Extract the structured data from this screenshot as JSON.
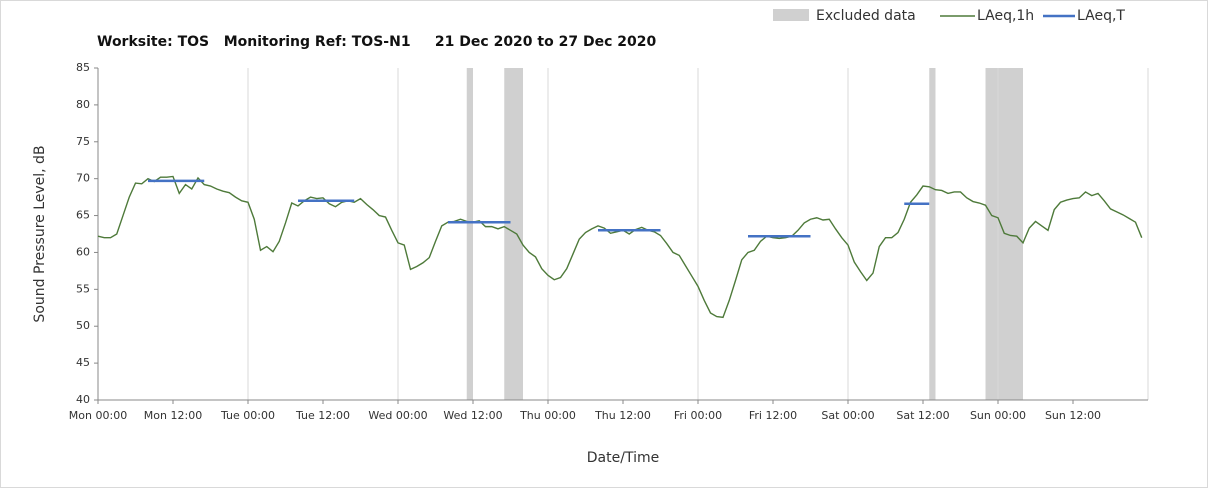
{
  "chart_data": {
    "type": "line",
    "title": "Worksite: TOS   Monitoring Ref: TOS-N1     21 Dec 2020 to 27 Dec 2020",
    "x_label": "Date/Time",
    "y_label": "Sound Pressure Level, dB",
    "xlim": [
      0,
      168
    ],
    "ylim": [
      40,
      85
    ],
    "xticks": [
      {
        "value": 0,
        "label": "Mon 00:00"
      },
      {
        "value": 12,
        "label": "Mon 12:00"
      },
      {
        "value": 24,
        "label": "Tue 00:00"
      },
      {
        "value": 36,
        "label": "Tue 12:00"
      },
      {
        "value": 48,
        "label": "Wed 00:00"
      },
      {
        "value": 60,
        "label": "Wed 12:00"
      },
      {
        "value": 72,
        "label": "Thu 00:00"
      },
      {
        "value": 84,
        "label": "Thu 12:00"
      },
      {
        "value": 96,
        "label": "Fri 00:00"
      },
      {
        "value": 108,
        "label": "Fri 12:00"
      },
      {
        "value": 120,
        "label": "Sat 00:00"
      },
      {
        "value": 132,
        "label": "Sat 12:00"
      },
      {
        "value": 144,
        "label": "Sun 00:00"
      },
      {
        "value": 156,
        "label": "Sun 12:00"
      }
    ],
    "yticks": [
      40,
      45,
      50,
      55,
      60,
      65,
      70,
      75,
      80,
      85
    ],
    "excluded": {
      "name": "Excluded data",
      "color": "#d0d0d0",
      "start": [
        59,
        65,
        133,
        142
      ],
      "end": [
        60,
        68,
        134,
        148
      ]
    },
    "series": [
      {
        "name": "LAeq,1h",
        "color": "#4e7a3a",
        "x": [
          0,
          1,
          2,
          3,
          4,
          5,
          6,
          7,
          8,
          9,
          10,
          11,
          12,
          13,
          14,
          15,
          16,
          17,
          18,
          19,
          20,
          21,
          22,
          23,
          24,
          25,
          26,
          27,
          28,
          29,
          30,
          31,
          32,
          33,
          34,
          35,
          36,
          37,
          38,
          39,
          40,
          41,
          42,
          43,
          44,
          45,
          46,
          47,
          48,
          49,
          50,
          51,
          52,
          53,
          54,
          55,
          56,
          57,
          58,
          59,
          60,
          61,
          62,
          63,
          64,
          65,
          66,
          67,
          68,
          69,
          70,
          71,
          72,
          73,
          74,
          75,
          76,
          77,
          78,
          79,
          80,
          81,
          82,
          83,
          84,
          85,
          86,
          87,
          88,
          89,
          90,
          91,
          92,
          93,
          94,
          95,
          96,
          97,
          98,
          99,
          100,
          101,
          102,
          103,
          104,
          105,
          106,
          107,
          108,
          109,
          110,
          111,
          112,
          113,
          114,
          115,
          116,
          117,
          118,
          119,
          120,
          121,
          122,
          123,
          124,
          125,
          126,
          127,
          128,
          129,
          130,
          131,
          132,
          133,
          134,
          135,
          136,
          137,
          138,
          139,
          140,
          141,
          142,
          143,
          144,
          145,
          146,
          147,
          148,
          149,
          150,
          151,
          152,
          153,
          154,
          155,
          156,
          157,
          158,
          159,
          160,
          161,
          162,
          163,
          164,
          165,
          166,
          167
        ],
        "values": [
          62.2,
          62.0,
          62.0,
          62.5,
          65.0,
          67.5,
          69.4,
          69.3,
          70.0,
          69.6,
          70.2,
          70.2,
          70.3,
          68.0,
          69.2,
          68.6,
          70.1,
          69.2,
          69.0,
          68.6,
          68.3,
          68.1,
          67.5,
          67.0,
          66.8,
          64.5,
          60.3,
          60.8,
          60.1,
          61.5,
          64.0,
          66.7,
          66.3,
          67.0,
          67.5,
          67.3,
          67.4,
          66.6,
          66.2,
          66.8,
          67.0,
          66.8,
          67.3,
          66.5,
          65.8,
          65.0,
          64.8,
          63.0,
          61.3,
          61.0,
          57.7,
          58.1,
          58.6,
          59.3,
          61.5,
          63.6,
          64.1,
          64.2,
          64.5,
          64.2,
          64.1,
          64.3,
          63.5,
          63.5,
          63.2,
          63.5,
          63.0,
          62.5,
          61.0,
          60.0,
          59.4,
          57.8,
          56.9,
          56.3,
          56.6,
          57.8,
          59.8,
          61.8,
          62.7,
          63.2,
          63.6,
          63.3,
          62.6,
          62.8,
          63.0,
          62.5,
          63.1,
          63.4,
          63.0,
          62.8,
          62.3,
          61.2,
          60.0,
          59.6,
          58.2,
          56.8,
          55.4,
          53.5,
          51.8,
          51.3,
          51.2,
          53.5,
          56.2,
          59.0,
          60.0,
          60.3,
          61.5,
          62.2,
          62.0,
          61.9,
          62.0,
          62.2,
          63.0,
          64.0,
          64.5,
          64.7,
          64.4,
          64.5,
          63.2,
          62.0,
          61.0,
          58.7,
          57.4,
          56.2,
          57.2,
          60.8,
          62.0,
          62.0,
          62.7,
          64.5,
          66.8,
          67.8,
          69.0,
          68.9,
          68.5,
          68.4,
          68.0,
          68.2,
          68.2,
          67.4,
          66.9,
          66.7,
          66.4,
          65.0,
          64.7,
          62.6,
          62.3,
          62.2,
          61.3,
          63.3,
          64.2,
          63.6,
          63.0,
          65.8,
          66.8,
          67.1,
          67.3,
          67.4,
          68.2,
          67.7,
          68.0,
          67.0,
          65.9,
          65.5,
          65.1,
          64.6,
          64.1,
          62.0
        ]
      }
    ],
    "segments": {
      "name": "LAeq,T",
      "color": "#4472c4",
      "start": [
        8,
        32,
        56,
        80,
        104,
        129
      ],
      "end": [
        17,
        41,
        66,
        90,
        114,
        133
      ],
      "values": [
        69.7,
        67.0,
        64.1,
        63.0,
        62.2,
        66.6
      ]
    }
  }
}
